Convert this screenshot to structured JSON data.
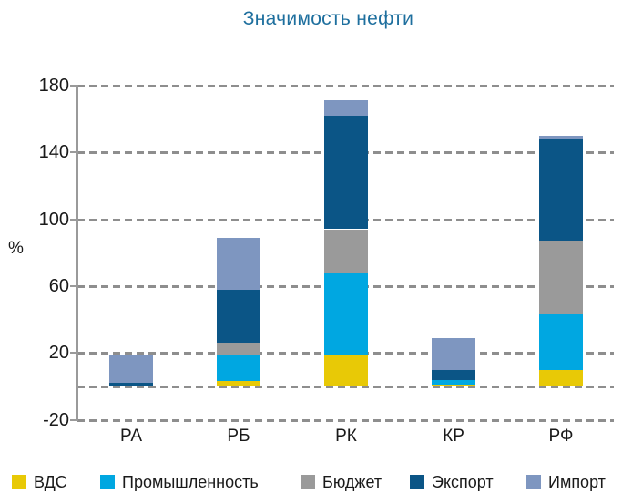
{
  "title": "Значимость нефти",
  "y_axis": {
    "unit_label": "%",
    "ticks": [
      180,
      140,
      100,
      60,
      20,
      -20
    ],
    "gridlines": [
      180,
      140,
      100,
      60,
      20,
      0,
      -20
    ]
  },
  "chart_data": {
    "type": "bar",
    "stacked": true,
    "title": "Значимость нефти",
    "xlabel": "",
    "ylabel": "%",
    "ylim": [
      -20,
      180
    ],
    "grid": "horizontal-dashed",
    "legend_position": "bottom",
    "categories": [
      "РА",
      "РБ",
      "РК",
      "КР",
      "РФ"
    ],
    "series": [
      {
        "name": "ВДС",
        "color": "#e8c906",
        "values": [
          0,
          3,
          19,
          1,
          10
        ]
      },
      {
        "name": "Промышленность",
        "color": "#00a7e1",
        "values": [
          0,
          16,
          49,
          3,
          33
        ]
      },
      {
        "name": "Бюджет",
        "color": "#9a9a9a",
        "values": [
          0,
          7,
          26,
          0,
          44
        ]
      },
      {
        "name": "Экспорт",
        "color": "#0b5586",
        "values": [
          2,
          32,
          68,
          6,
          61
        ]
      },
      {
        "name": "Импорт",
        "color": "#7e96c0",
        "values": [
          17,
          31,
          9,
          19,
          2
        ]
      }
    ]
  },
  "colors": {
    "title": "#1e6f9e",
    "axis": "#9a9a9a",
    "grid": "#8e8e8e",
    "text": "#1a1a1a"
  }
}
